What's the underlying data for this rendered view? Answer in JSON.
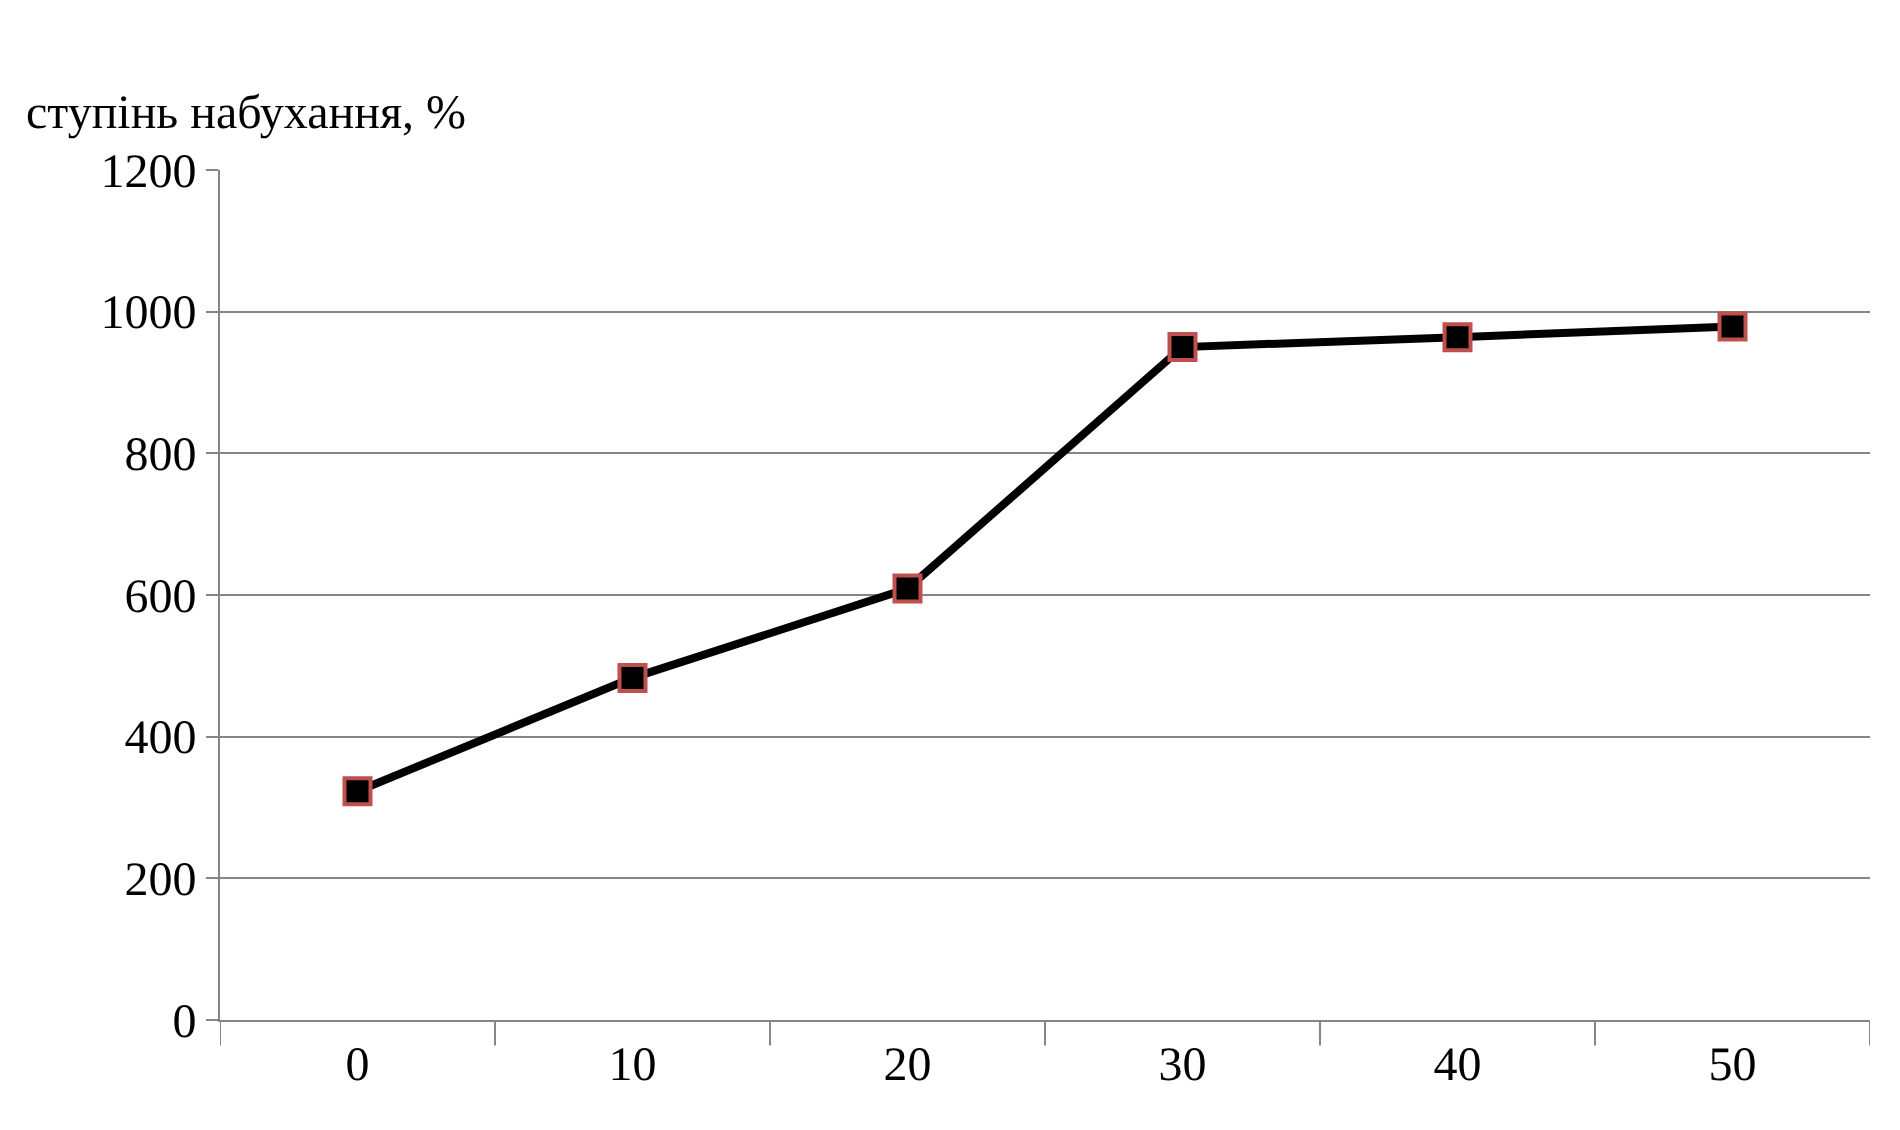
{
  "chart_data": {
    "type": "line",
    "ylabel": "ступінь набухання, %",
    "categories": [
      "0",
      "10",
      "20",
      "30",
      "40",
      "50"
    ],
    "series": [
      {
        "color": "#000000",
        "values": [
          323,
          483,
          609,
          950,
          964,
          979
        ]
      }
    ],
    "ylim": [
      0,
      1200
    ],
    "yticks": [
      0,
      200,
      400,
      600,
      800,
      1000,
      1200
    ],
    "grid": "y",
    "marker": "square",
    "line_style": "solid"
  }
}
